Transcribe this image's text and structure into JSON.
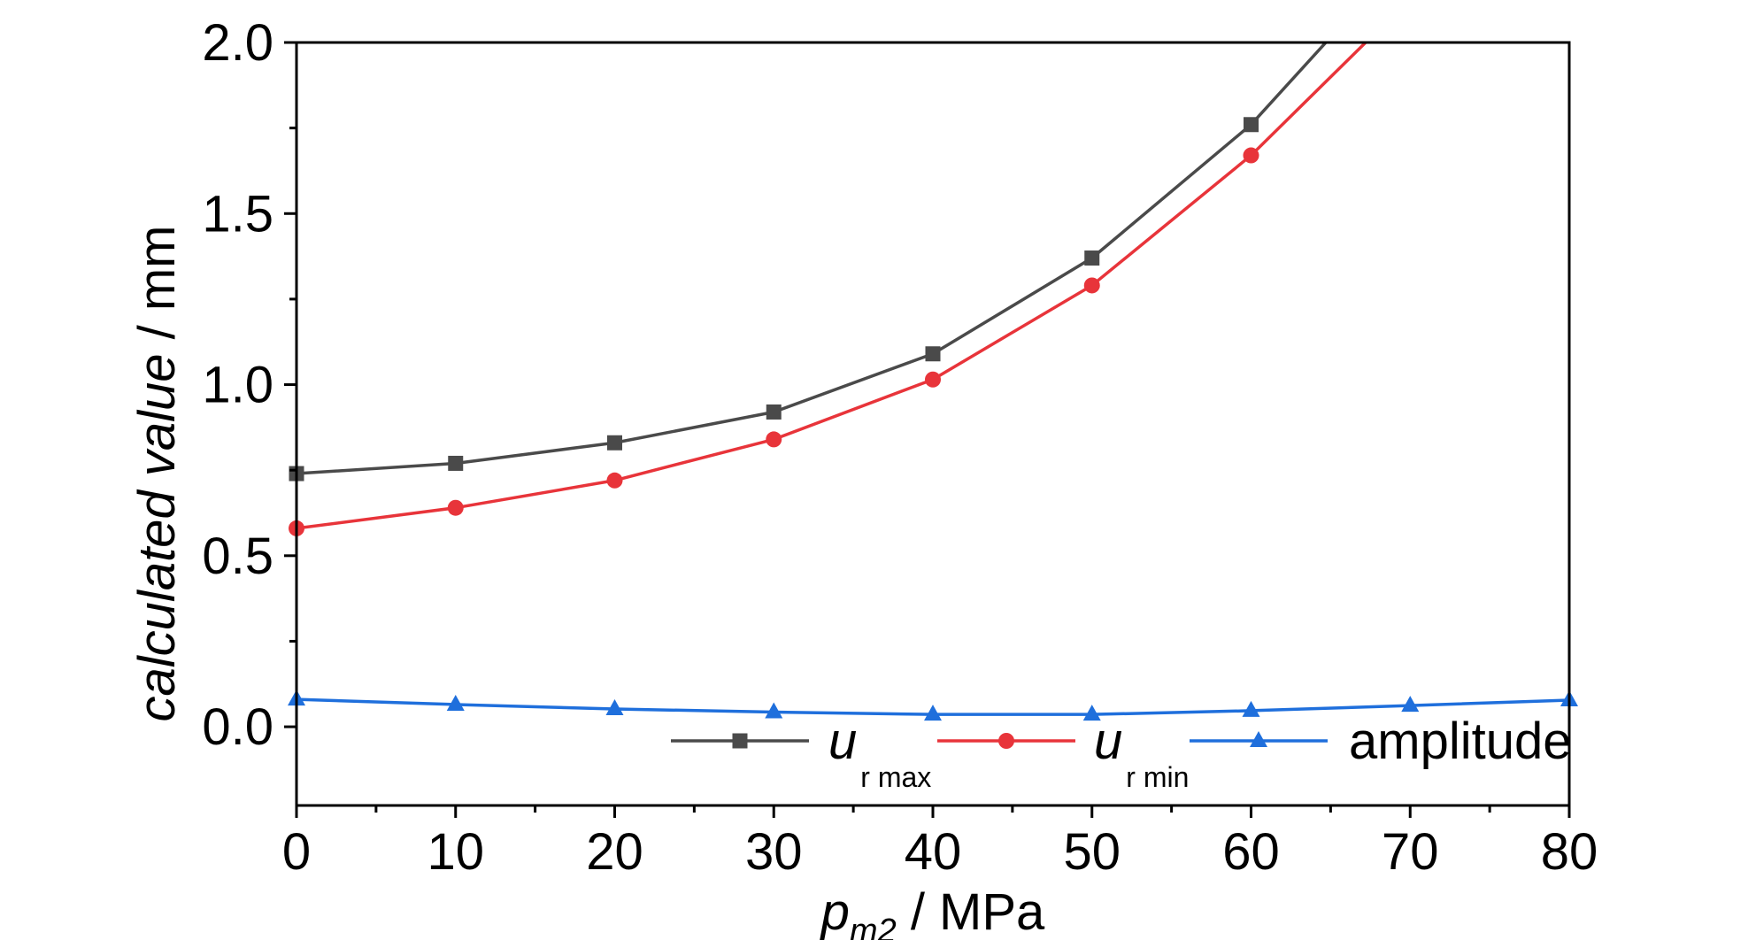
{
  "chart_data": {
    "type": "line",
    "title": "",
    "xlabel": {
      "base": "p",
      "subscript": "m2",
      "unit": " / MPa"
    },
    "ylabel": {
      "plain": "calculated ",
      "italic": "value",
      "unit": " / mm"
    },
    "xlim": [
      0,
      80
    ],
    "ylim": [
      -0.23,
      2.0
    ],
    "x_ticks": [
      0,
      10,
      20,
      30,
      40,
      50,
      60,
      70,
      80
    ],
    "y_ticks": [
      0.0,
      0.5,
      1.0,
      1.5,
      2.0
    ],
    "x_tick_labels": [
      "0",
      "10",
      "20",
      "30",
      "40",
      "50",
      "60",
      "70",
      "80"
    ],
    "y_tick_labels": [
      "0.0",
      "0.5",
      "1.0",
      "1.5",
      "2.0"
    ],
    "grid": false,
    "legend_position": "bottom-right",
    "series": [
      {
        "name": "u r max",
        "label_main": "u",
        "label_sub": "r max",
        "color": "#4a4a4a",
        "marker": "square",
        "x": [
          0,
          10,
          20,
          30,
          40,
          50,
          60
        ],
        "y": [
          0.74,
          0.77,
          0.83,
          0.92,
          1.09,
          1.37,
          1.76
        ],
        "line_x": [
          0,
          10,
          20,
          30,
          40,
          50,
          60,
          64.7
        ],
        "line_y": [
          0.74,
          0.77,
          0.83,
          0.92,
          1.09,
          1.37,
          1.76,
          2.0
        ]
      },
      {
        "name": "u r min",
        "label_main": "u",
        "label_sub": "r min",
        "color": "#e8343a",
        "marker": "circle",
        "x": [
          0,
          10,
          20,
          30,
          40,
          50,
          60
        ],
        "y": [
          0.58,
          0.64,
          0.72,
          0.84,
          1.015,
          1.29,
          1.67
        ],
        "line_x": [
          0,
          10,
          20,
          30,
          40,
          50,
          60,
          67.2
        ],
        "line_y": [
          0.58,
          0.64,
          0.72,
          0.84,
          1.015,
          1.29,
          1.67,
          2.0
        ]
      },
      {
        "name": "amplitude",
        "label_main": "amplitude",
        "label_sub": "",
        "color": "#1f6fdc",
        "marker": "triangle",
        "x": [
          0,
          10,
          20,
          30,
          40,
          50,
          60,
          70,
          80
        ],
        "y": [
          0.08,
          0.065,
          0.052,
          0.043,
          0.036,
          0.036,
          0.047,
          0.062,
          0.078
        ],
        "line_x": [
          0,
          10,
          20,
          30,
          40,
          50,
          60,
          70,
          80
        ],
        "line_y": [
          0.08,
          0.065,
          0.052,
          0.043,
          0.036,
          0.036,
          0.047,
          0.062,
          0.078
        ]
      }
    ]
  }
}
